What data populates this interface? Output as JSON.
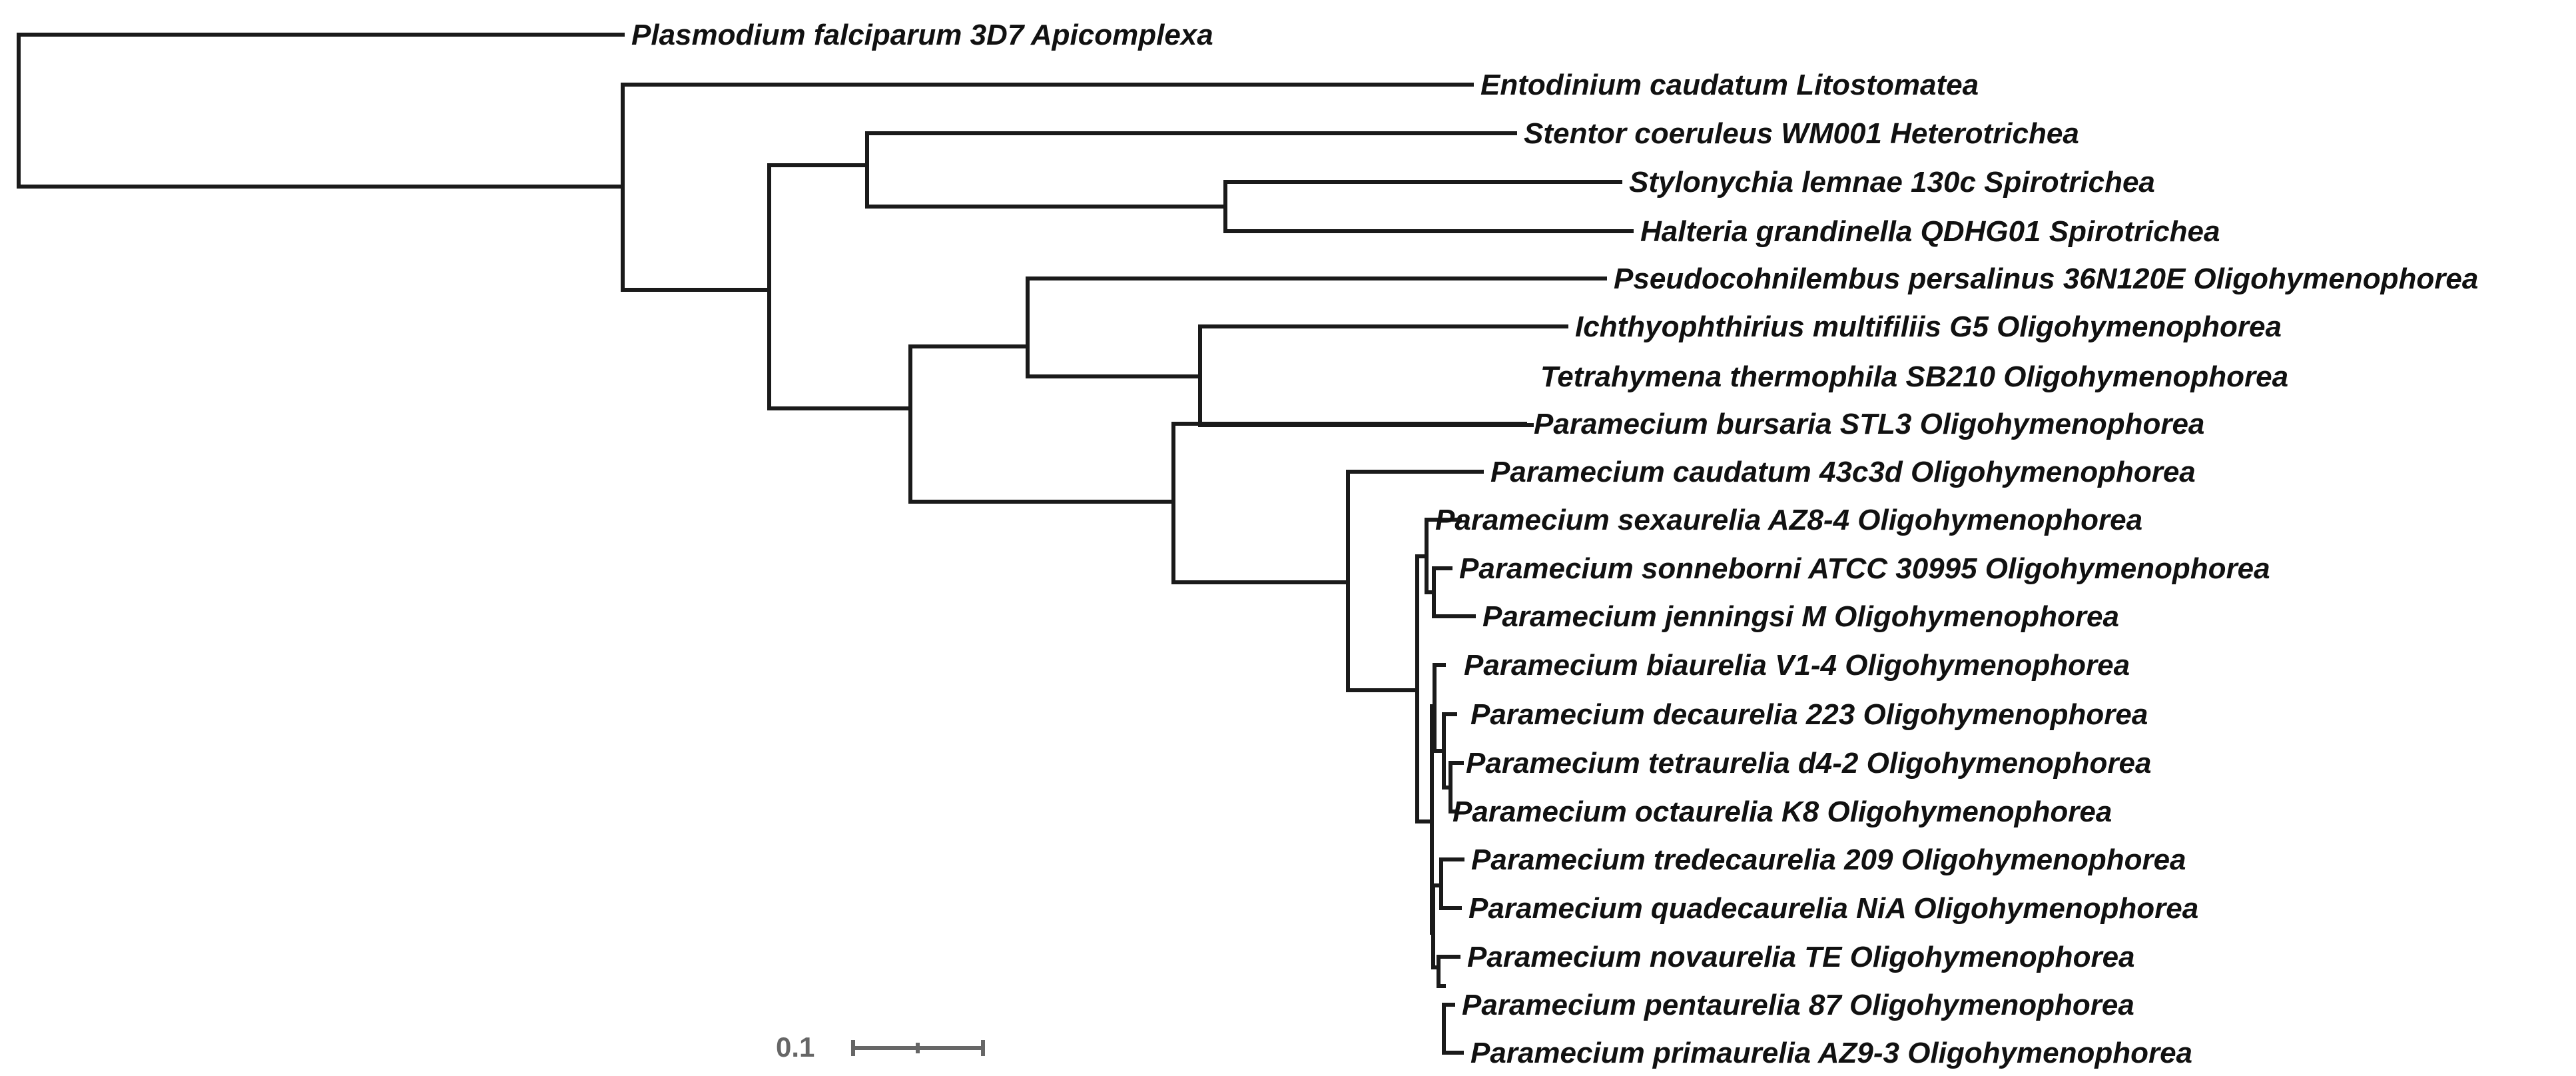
{
  "tree": {
    "taxa": [
      "Plasmodium falciparum 3D7 Apicomplexa",
      "Entodinium caudatum Litostomatea",
      "Stentor coeruleus WM001 Heterotrichea",
      "Stylonychia lemnae 130c Spirotrichea",
      "Halteria grandinella QDHG01 Spirotrichea",
      "Pseudocohnilembus persalinus 36N120E Oligohymenophorea",
      "Ichthyophthirius multifiliis G5 Oligohymenophorea",
      "Tetrahymena thermophila SB210 Oligohymenophorea",
      "Paramecium bursaria STL3 Oligohymenophorea",
      "Paramecium caudatum 43c3d Oligohymenophorea",
      "Paramecium sexaurelia AZ8-4 Oligohymenophorea",
      "Paramecium sonneborni ATCC 30995 Oligohymenophorea",
      "Paramecium jenningsi M Oligohymenophorea",
      "Paramecium biaurelia V1-4 Oligohymenophorea",
      "Paramecium decaurelia 223 Oligohymenophorea",
      "Paramecium tetraurelia d4-2 Oligohymenophorea",
      "Paramecium octaurelia K8 Oligohymenophorea",
      "Paramecium tredecaurelia 209 Oligohymenophorea",
      "Paramecium quadecaurelia NiA Oligohymenophorea",
      "Paramecium novaurelia TE Oligohymenophorea",
      "Paramecium pentaurelia 87 Oligohymenophorea",
      "Paramecium primaurelia AZ9-3 Oligohymenophorea"
    ]
  },
  "scale_bar": {
    "label": "0.1",
    "value": 0.1
  }
}
